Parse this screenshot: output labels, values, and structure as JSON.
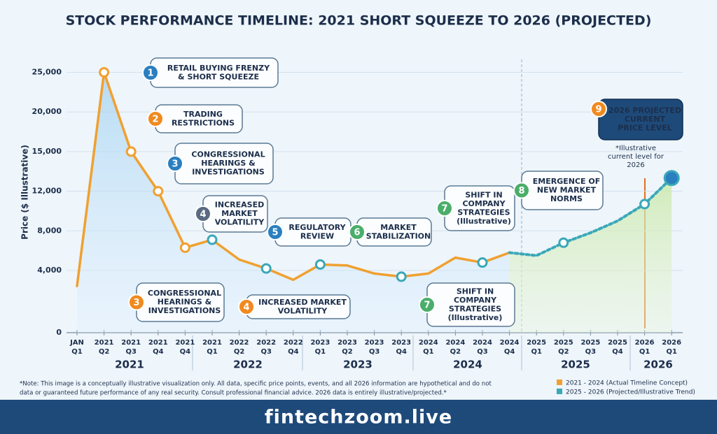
{
  "chart_data": {
    "type": "line",
    "title": "STOCK PERFORMANCE TIMELINE: 2021 SHORT SQUEEZE TO 2026 (PROJECTED)",
    "y_label": "Price ($ Illustrative)",
    "categories": [
      [
        "JAN",
        "Q1"
      ],
      [
        "2021",
        "Q2"
      ],
      [
        "2021",
        "Q3"
      ],
      [
        "2021",
        "Q4"
      ],
      [
        "2021",
        "Q4"
      ],
      [
        "2021",
        "Q1"
      ],
      [
        "2022",
        "Q2"
      ],
      [
        "2022",
        "Q3"
      ],
      [
        "2022",
        "Q4"
      ],
      [
        "2023",
        "Q1"
      ],
      [
        "2023",
        "Q2"
      ],
      [
        "2023",
        "Q3"
      ],
      [
        "2023",
        "Q4"
      ],
      [
        "2024",
        "Q1"
      ],
      [
        "2024",
        "Q2"
      ],
      [
        "2024",
        "Q3"
      ],
      [
        "2024",
        "Q4"
      ],
      [
        "2025",
        "Q1"
      ],
      [
        "2025",
        "Q2"
      ],
      [
        "2025",
        "Q3"
      ],
      [
        "2025",
        "Q4"
      ],
      [
        "2026",
        "Q1"
      ],
      [
        "2026",
        "Q1"
      ]
    ],
    "year_groups": [
      2021,
      2022,
      2023,
      2024,
      2025,
      2026
    ],
    "series": [
      {
        "name": "2021 - 2024 (Actual Timeline Concept)",
        "color": "#f0a030",
        "values": [
          3000,
          25000,
          15000,
          12000,
          6300,
          7100,
          5100,
          4200,
          3400,
          4600,
          4500,
          3800,
          3600,
          3800,
          5300,
          4800,
          5800,
          null,
          null,
          null,
          null,
          null,
          null
        ]
      },
      {
        "name": "2025 - 2026 (Projected/Illustrative Trend)",
        "color": "#3aa8b8",
        "values": [
          null,
          null,
          null,
          null,
          null,
          null,
          null,
          null,
          null,
          null,
          null,
          null,
          null,
          null,
          null,
          null,
          5800,
          5500,
          6800,
          7800,
          9000,
          10700,
          13000
        ]
      }
    ],
    "ylim": [
      0,
      25000
    ],
    "yticks": [
      0,
      {
        "value": 4000,
        "label": "4,000"
      },
      {
        "value": 8000,
        "label": "8,000"
      },
      {
        "value": 12000,
        "label": "12,000"
      },
      {
        "value": 15000,
        "label": "15,000"
      },
      {
        "value": 20000,
        "label": "20,000"
      },
      {
        "value": 25000,
        "label": "25,000"
      }
    ],
    "annotations": [
      {
        "number": 1,
        "lines": [
          "RETAIL BUYING FRENZY",
          "& SHORT SQUEEZE"
        ]
      },
      {
        "number": 2,
        "lines": [
          "TRADING",
          "RESTRICTIONS"
        ]
      },
      {
        "number": 3,
        "lines": [
          "CONGRESSIONAL",
          "HEARINGS &",
          "INVESTIGATIONS"
        ]
      },
      {
        "number": 4,
        "lines": [
          "INCREASED",
          "MARKET",
          "VOLATILITY"
        ]
      },
      {
        "number": 5,
        "lines": [
          "REGULATORY",
          "REVIEW"
        ]
      },
      {
        "number": 6,
        "lines": [
          "MARKET",
          "STABILIZATION"
        ]
      },
      {
        "number": 7,
        "lines": [
          "SHIFT IN",
          "COMPANY",
          "STRATEGIES",
          "(Illustrative)"
        ]
      },
      {
        "number": 8,
        "lines": [
          "EMERGENCE OF",
          "NEW MARKET",
          "NORMS"
        ]
      },
      {
        "number": 9,
        "lines": [
          "2026 PROJECTED",
          "CURRENT",
          "PRICE LEVEL"
        ]
      },
      {
        "number": 3,
        "lines": [
          "CONGRESSIONAL",
          "HEARINGS &",
          "INVESTIGATIONS"
        ]
      },
      {
        "number": 4,
        "lines": [
          "INCREASED MARKET",
          "VOLATILITY"
        ]
      },
      {
        "number": 7,
        "lines": [
          "SHIFT IN",
          "COMPANY",
          "STRATEGIES",
          "(Illustrative)"
        ]
      }
    ],
    "illustrative_note": [
      "*Illustrative",
      "current level for",
      "2026"
    ],
    "note": [
      "*Note: This image is a conceptually illustrative visualization only. All data, specific price points, events, and all 2026 information are hypothetical and do not",
      "data or guaranteed future performance of any real security.   Consult professional financial advice. 2026 data is entirely illustrative/projected.*"
    ],
    "footer": "fintechzoom.live"
  }
}
